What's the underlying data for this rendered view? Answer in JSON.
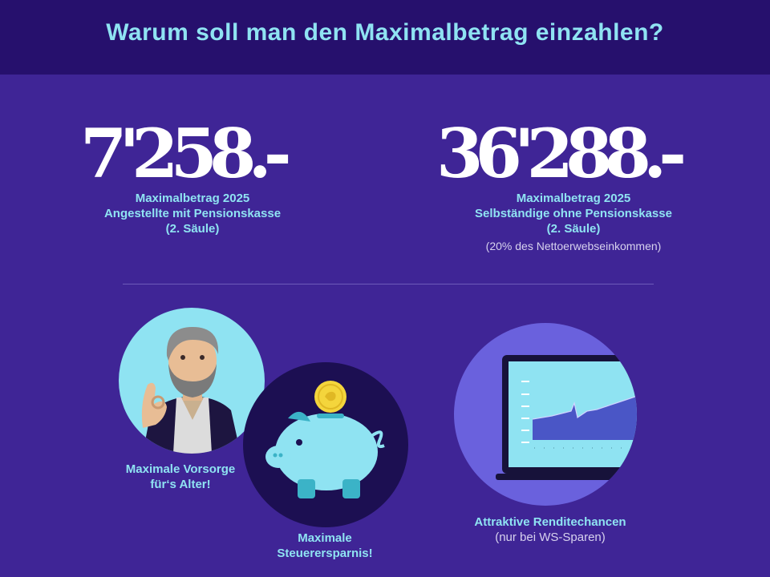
{
  "header": {
    "title": "Warum soll man den Maximalbetrag einzahlen?"
  },
  "left": {
    "amount": "7'258.-",
    "line1": "Maximalbetrag 2025",
    "line2": "Angestellte mit Pensionskasse",
    "line3": "(2. Säule)"
  },
  "right": {
    "amount": "36'288.-",
    "line1": "Maximalbetrag 2025",
    "line2": "Selbständige ohne Pensionskasse",
    "line3": "(2. Säule)",
    "note": "(20% des Nettoerwebseinkommen)"
  },
  "features": {
    "vorsorge": {
      "line1": "Maximale Vorsorge",
      "line2": "für‘s Alter!"
    },
    "steuer": {
      "line1": "Maximale",
      "line2": "Steuerersparnis!"
    },
    "rendite": {
      "line1": "Attraktive Renditechancen",
      "line2": "(nur bei WS-Sparen)"
    }
  },
  "colors": {
    "background": "#3f2596",
    "header": "#26106d",
    "accent": "#8fe3f2",
    "text": "#ffffff"
  },
  "icons": [
    "man-illustration-icon",
    "piggy-bank-icon",
    "coin-icon",
    "laptop-chart-icon"
  ]
}
